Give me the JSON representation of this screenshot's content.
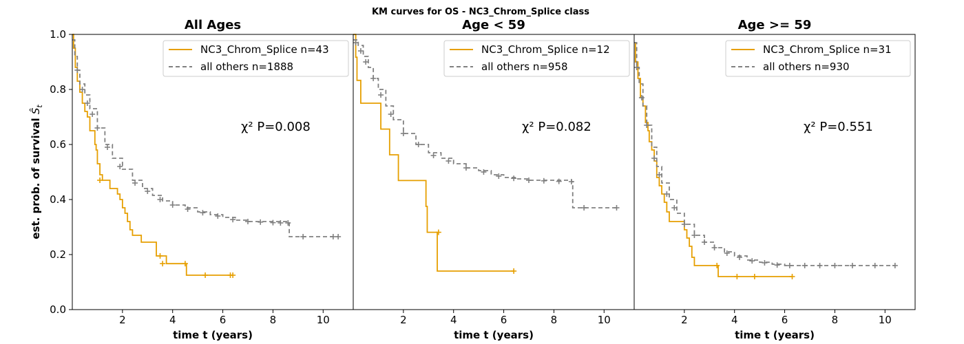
{
  "figure": {
    "suptitle": "KM curves for OS - NC3_Chrom_Splice class",
    "ylabel": "est. prob. of survival Ŝt",
    "xlabel": "time t (years)"
  },
  "colors": {
    "group": "#e69f00",
    "others": "#808080"
  },
  "chart_data": [
    {
      "type": "line",
      "title": "All Ages",
      "xlabel": "time t (years)",
      "ylabel": "est. prob. of survival Ŝt",
      "xlim": [
        0,
        11.2
      ],
      "ylim": [
        0,
        1.0
      ],
      "xticks": [
        2,
        4,
        6,
        8,
        10
      ],
      "yticks": [
        0.0,
        0.2,
        0.4,
        0.6,
        0.8,
        1.0
      ],
      "annotation": "χ² P=0.008",
      "series": [
        {
          "name": "NC3_Chrom_Splice n=43",
          "style": "solid",
          "color": "#e69f00",
          "points": [
            [
              0,
              1.0
            ],
            [
              0.05,
              0.95
            ],
            [
              0.12,
              0.88
            ],
            [
              0.2,
              0.83
            ],
            [
              0.3,
              0.79
            ],
            [
              0.4,
              0.75
            ],
            [
              0.5,
              0.72
            ],
            [
              0.6,
              0.7
            ],
            [
              0.7,
              0.65
            ],
            [
              0.85,
              0.65
            ],
            [
              0.9,
              0.6
            ],
            [
              0.95,
              0.58
            ],
            [
              1.0,
              0.53
            ],
            [
              1.1,
              0.49
            ],
            [
              1.2,
              0.47
            ],
            [
              1.5,
              0.44
            ],
            [
              1.7,
              0.44
            ],
            [
              1.8,
              0.42
            ],
            [
              1.9,
              0.4
            ],
            [
              2.0,
              0.37
            ],
            [
              2.1,
              0.35
            ],
            [
              2.2,
              0.32
            ],
            [
              2.3,
              0.29
            ],
            [
              2.4,
              0.27
            ],
            [
              2.7,
              0.27
            ],
            [
              2.75,
              0.245
            ],
            [
              3.3,
              0.245
            ],
            [
              3.35,
              0.195
            ],
            [
              3.7,
              0.195
            ],
            [
              3.75,
              0.167
            ],
            [
              4.5,
              0.167
            ],
            [
              4.55,
              0.125
            ],
            [
              6.4,
              0.125
            ]
          ],
          "censored": [
            [
              1.1,
              0.47
            ],
            [
              3.5,
              0.195
            ],
            [
              3.6,
              0.167
            ],
            [
              4.5,
              0.167
            ],
            [
              5.3,
              0.125
            ],
            [
              6.3,
              0.125
            ],
            [
              6.4,
              0.125
            ]
          ]
        },
        {
          "name": "all others n=1888",
          "style": "dashed",
          "color": "#808080",
          "points": [
            [
              0,
              0.98
            ],
            [
              0.1,
              0.92
            ],
            [
              0.2,
              0.87
            ],
            [
              0.3,
              0.82
            ],
            [
              0.5,
              0.78
            ],
            [
              0.7,
              0.73
            ],
            [
              1.0,
              0.66
            ],
            [
              1.3,
              0.6
            ],
            [
              1.6,
              0.55
            ],
            [
              2.0,
              0.51
            ],
            [
              2.4,
              0.47
            ],
            [
              2.8,
              0.44
            ],
            [
              3.2,
              0.415
            ],
            [
              3.6,
              0.395
            ],
            [
              4.0,
              0.38
            ],
            [
              4.5,
              0.37
            ],
            [
              5.0,
              0.355
            ],
            [
              5.5,
              0.345
            ],
            [
              6.0,
              0.335
            ],
            [
              6.5,
              0.325
            ],
            [
              7.0,
              0.32
            ],
            [
              8.6,
              0.315
            ],
            [
              8.65,
              0.265
            ],
            [
              10.6,
              0.265
            ]
          ],
          "censored": [
            [
              0.2,
              0.87
            ],
            [
              0.4,
              0.8
            ],
            [
              0.6,
              0.75
            ],
            [
              0.8,
              0.71
            ],
            [
              1.0,
              0.66
            ],
            [
              1.4,
              0.59
            ],
            [
              1.9,
              0.52
            ],
            [
              2.5,
              0.46
            ],
            [
              3.0,
              0.43
            ],
            [
              3.5,
              0.4
            ],
            [
              4.0,
              0.38
            ],
            [
              4.6,
              0.365
            ],
            [
              5.2,
              0.352
            ],
            [
              5.8,
              0.34
            ],
            [
              6.4,
              0.327
            ],
            [
              7.0,
              0.32
            ],
            [
              7.5,
              0.318
            ],
            [
              8.0,
              0.316
            ],
            [
              8.3,
              0.315
            ],
            [
              8.6,
              0.315
            ],
            [
              9.2,
              0.265
            ],
            [
              10.4,
              0.265
            ],
            [
              10.6,
              0.265
            ]
          ]
        }
      ]
    },
    {
      "type": "line",
      "title": "Age < 59",
      "xlabel": "time t (years)",
      "xlim": [
        0,
        11.2
      ],
      "ylim": [
        0,
        1.0
      ],
      "xticks": [
        2,
        4,
        6,
        8,
        10
      ],
      "annotation": "χ² P=0.082",
      "series": [
        {
          "name": "NC3_Chrom_Splice n=12",
          "style": "solid",
          "color": "#e69f00",
          "points": [
            [
              0,
              1.0
            ],
            [
              0.1,
              0.917
            ],
            [
              0.15,
              0.833
            ],
            [
              0.3,
              0.75
            ],
            [
              1.0,
              0.75
            ],
            [
              1.1,
              0.656
            ],
            [
              1.4,
              0.656
            ],
            [
              1.45,
              0.5625
            ],
            [
              1.75,
              0.5625
            ],
            [
              1.8,
              0.469
            ],
            [
              2.85,
              0.469
            ],
            [
              2.9,
              0.375
            ],
            [
              2.95,
              0.281
            ],
            [
              3.3,
              0.281
            ],
            [
              3.35,
              0.14
            ],
            [
              6.4,
              0.14
            ]
          ],
          "censored": [
            [
              3.4,
              0.281
            ],
            [
              6.4,
              0.14
            ]
          ]
        },
        {
          "name": "all others n=958",
          "style": "dashed",
          "color": "#808080",
          "points": [
            [
              0,
              0.98
            ],
            [
              0.2,
              0.96
            ],
            [
              0.4,
              0.92
            ],
            [
              0.6,
              0.88
            ],
            [
              0.8,
              0.84
            ],
            [
              1.0,
              0.8
            ],
            [
              1.3,
              0.74
            ],
            [
              1.6,
              0.69
            ],
            [
              2.0,
              0.64
            ],
            [
              2.5,
              0.6
            ],
            [
              3.0,
              0.57
            ],
            [
              3.5,
              0.55
            ],
            [
              4.0,
              0.53
            ],
            [
              4.5,
              0.515
            ],
            [
              5.0,
              0.505
            ],
            [
              5.5,
              0.49
            ],
            [
              6.0,
              0.48
            ],
            [
              6.5,
              0.475
            ],
            [
              7.0,
              0.47
            ],
            [
              8.7,
              0.465
            ],
            [
              8.75,
              0.37
            ],
            [
              10.6,
              0.37
            ]
          ],
          "censored": [
            [
              0.1,
              0.97
            ],
            [
              0.3,
              0.94
            ],
            [
              0.5,
              0.9
            ],
            [
              0.8,
              0.84
            ],
            [
              1.1,
              0.78
            ],
            [
              1.5,
              0.71
            ],
            [
              2.0,
              0.64
            ],
            [
              2.6,
              0.6
            ],
            [
              3.2,
              0.56
            ],
            [
              3.8,
              0.54
            ],
            [
              4.5,
              0.515
            ],
            [
              5.2,
              0.5
            ],
            [
              5.8,
              0.485
            ],
            [
              6.4,
              0.477
            ],
            [
              7.0,
              0.47
            ],
            [
              7.6,
              0.468
            ],
            [
              8.2,
              0.466
            ],
            [
              8.7,
              0.465
            ],
            [
              9.2,
              0.37
            ],
            [
              10.5,
              0.37
            ]
          ]
        }
      ]
    },
    {
      "type": "line",
      "title": "Age >= 59",
      "xlabel": "time t (years)",
      "xlim": [
        0,
        11.2
      ],
      "ylim": [
        0,
        1.0
      ],
      "xticks": [
        2,
        4,
        6,
        8,
        10
      ],
      "annotation": "χ² P=0.551",
      "series": [
        {
          "name": "NC3_Chrom_Splice n=31",
          "style": "solid",
          "color": "#e69f00",
          "points": [
            [
              0,
              0.97
            ],
            [
              0.05,
              0.9
            ],
            [
              0.15,
              0.84
            ],
            [
              0.25,
              0.77
            ],
            [
              0.35,
              0.74
            ],
            [
              0.45,
              0.68
            ],
            [
              0.55,
              0.65
            ],
            [
              0.6,
              0.61
            ],
            [
              0.7,
              0.58
            ],
            [
              0.8,
              0.54
            ],
            [
              0.9,
              0.48
            ],
            [
              1.0,
              0.45
            ],
            [
              1.1,
              0.42
            ],
            [
              1.2,
              0.39
            ],
            [
              1.3,
              0.355
            ],
            [
              1.4,
              0.32
            ],
            [
              1.9,
              0.32
            ],
            [
              2.0,
              0.29
            ],
            [
              2.1,
              0.26
            ],
            [
              2.2,
              0.23
            ],
            [
              2.3,
              0.19
            ],
            [
              2.4,
              0.16
            ],
            [
              3.3,
              0.16
            ],
            [
              3.35,
              0.12
            ],
            [
              6.3,
              0.12
            ]
          ],
          "censored": [
            [
              3.3,
              0.16
            ],
            [
              4.1,
              0.12
            ],
            [
              4.8,
              0.12
            ],
            [
              6.3,
              0.12
            ]
          ]
        },
        {
          "name": "all others n=930",
          "style": "dashed",
          "color": "#808080",
          "points": [
            [
              0,
              0.97
            ],
            [
              0.1,
              0.88
            ],
            [
              0.2,
              0.82
            ],
            [
              0.35,
              0.74
            ],
            [
              0.5,
              0.67
            ],
            [
              0.7,
              0.59
            ],
            [
              0.9,
              0.52
            ],
            [
              1.1,
              0.46
            ],
            [
              1.4,
              0.4
            ],
            [
              1.7,
              0.35
            ],
            [
              2.0,
              0.31
            ],
            [
              2.4,
              0.27
            ],
            [
              2.8,
              0.245
            ],
            [
              3.2,
              0.225
            ],
            [
              3.6,
              0.21
            ],
            [
              4.0,
              0.195
            ],
            [
              4.5,
              0.18
            ],
            [
              5.0,
              0.172
            ],
            [
              5.5,
              0.165
            ],
            [
              6.0,
              0.16
            ],
            [
              10.4,
              0.16
            ]
          ],
          "censored": [
            [
              0.1,
              0.88
            ],
            [
              0.3,
              0.77
            ],
            [
              0.5,
              0.67
            ],
            [
              0.8,
              0.55
            ],
            [
              1.0,
              0.49
            ],
            [
              1.3,
              0.42
            ],
            [
              1.6,
              0.37
            ],
            [
              2.0,
              0.31
            ],
            [
              2.4,
              0.27
            ],
            [
              2.8,
              0.245
            ],
            [
              3.2,
              0.225
            ],
            [
              3.7,
              0.205
            ],
            [
              4.2,
              0.19
            ],
            [
              4.7,
              0.177
            ],
            [
              5.2,
              0.17
            ],
            [
              5.7,
              0.162
            ],
            [
              6.2,
              0.16
            ],
            [
              6.8,
              0.16
            ],
            [
              7.4,
              0.16
            ],
            [
              8.0,
              0.16
            ],
            [
              8.7,
              0.16
            ],
            [
              9.6,
              0.16
            ],
            [
              10.4,
              0.16
            ]
          ]
        }
      ]
    }
  ]
}
